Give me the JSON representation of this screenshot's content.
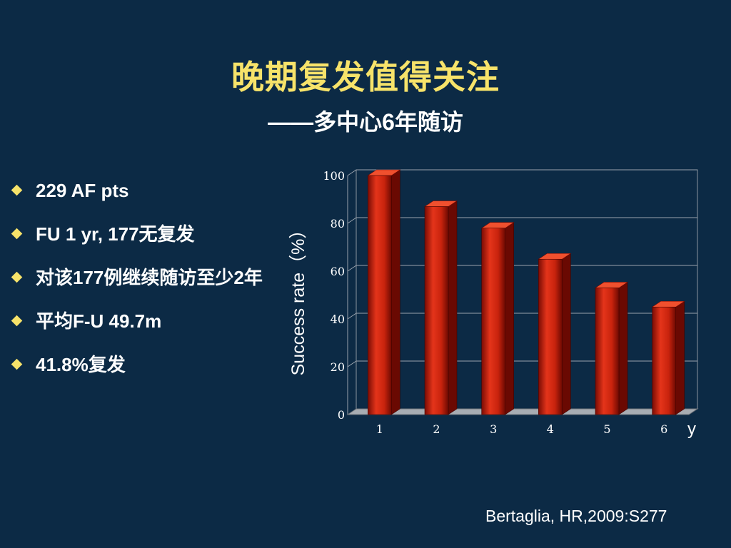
{
  "slide": {
    "title": "晚期复发值得关注",
    "subtitle": "——多中心6年随访",
    "bullets": [
      "229 AF pts",
      "FU 1 yr, 177无复发",
      "对该177例继续随访至少2年",
      "平均F-U 49.7m",
      "41.8%复发"
    ],
    "source": "Bertaglia, HR,2009:S277"
  },
  "chart_data": {
    "type": "bar",
    "categories": [
      "1",
      "2",
      "3",
      "4",
      "5",
      "6"
    ],
    "values": [
      100,
      87,
      78,
      65,
      53,
      45
    ],
    "title": "",
    "xlabel": "y",
    "ylabel": "Success rate（%）",
    "ylim": [
      0,
      100
    ],
    "yticks": [
      "0",
      "20",
      "40",
      "60",
      "80",
      "100"
    ],
    "grid": true,
    "bar_color": "#d42a10"
  }
}
